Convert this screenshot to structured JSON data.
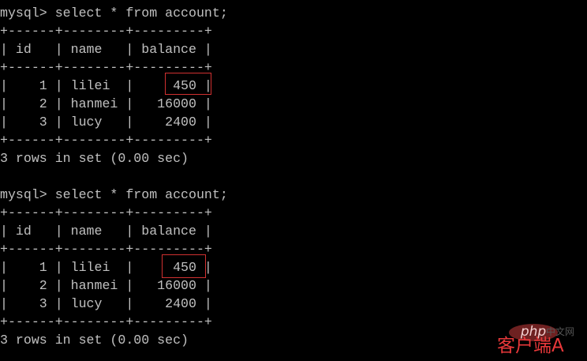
{
  "terminal": {
    "lines": [
      "mysql> select * from account;",
      "+------+--------+---------+",
      "| id   | name   | balance |",
      "+------+--------+---------+",
      "|    1 | lilei  |     450 |",
      "|    2 | hanmei |   16000 |",
      "|    3 | lucy   |    2400 |",
      "+------+--------+---------+",
      "3 rows in set (0.00 sec)",
      "",
      "mysql> select * from account;",
      "+------+--------+---------+",
      "| id   | name   | balance |",
      "+------+--------+---------+",
      "|    1 | lilei  |     450 |",
      "|    2 | hanmei |   16000 |",
      "|    3 | lucy   |    2400 |",
      "+------+--------+---------+",
      "3 rows in set (0.00 sec)"
    ]
  },
  "queries": [
    {
      "sql": "select * from account;",
      "columns": [
        "id",
        "name",
        "balance"
      ],
      "rows": [
        [
          "1",
          "lilei",
          "450"
        ],
        [
          "2",
          "hanmei",
          "16000"
        ],
        [
          "3",
          "lucy",
          "2400"
        ]
      ],
      "status": "3 rows in set (0.00 sec)"
    },
    {
      "sql": "select * from account;",
      "columns": [
        "id",
        "name",
        "balance"
      ],
      "rows": [
        [
          "1",
          "lilei",
          "450"
        ],
        [
          "2",
          "hanmei",
          "16000"
        ],
        [
          "3",
          "lucy",
          "2400"
        ]
      ],
      "status": "3 rows in set (0.00 sec)"
    }
  ],
  "annotation": {
    "label": "客户端A",
    "highlight_color": "#d03030"
  },
  "watermark": {
    "logo": "php",
    "site": "中文网"
  },
  "colors": {
    "background": "#000000",
    "text": "#c0c0c0",
    "annotation": "#e8383a"
  }
}
